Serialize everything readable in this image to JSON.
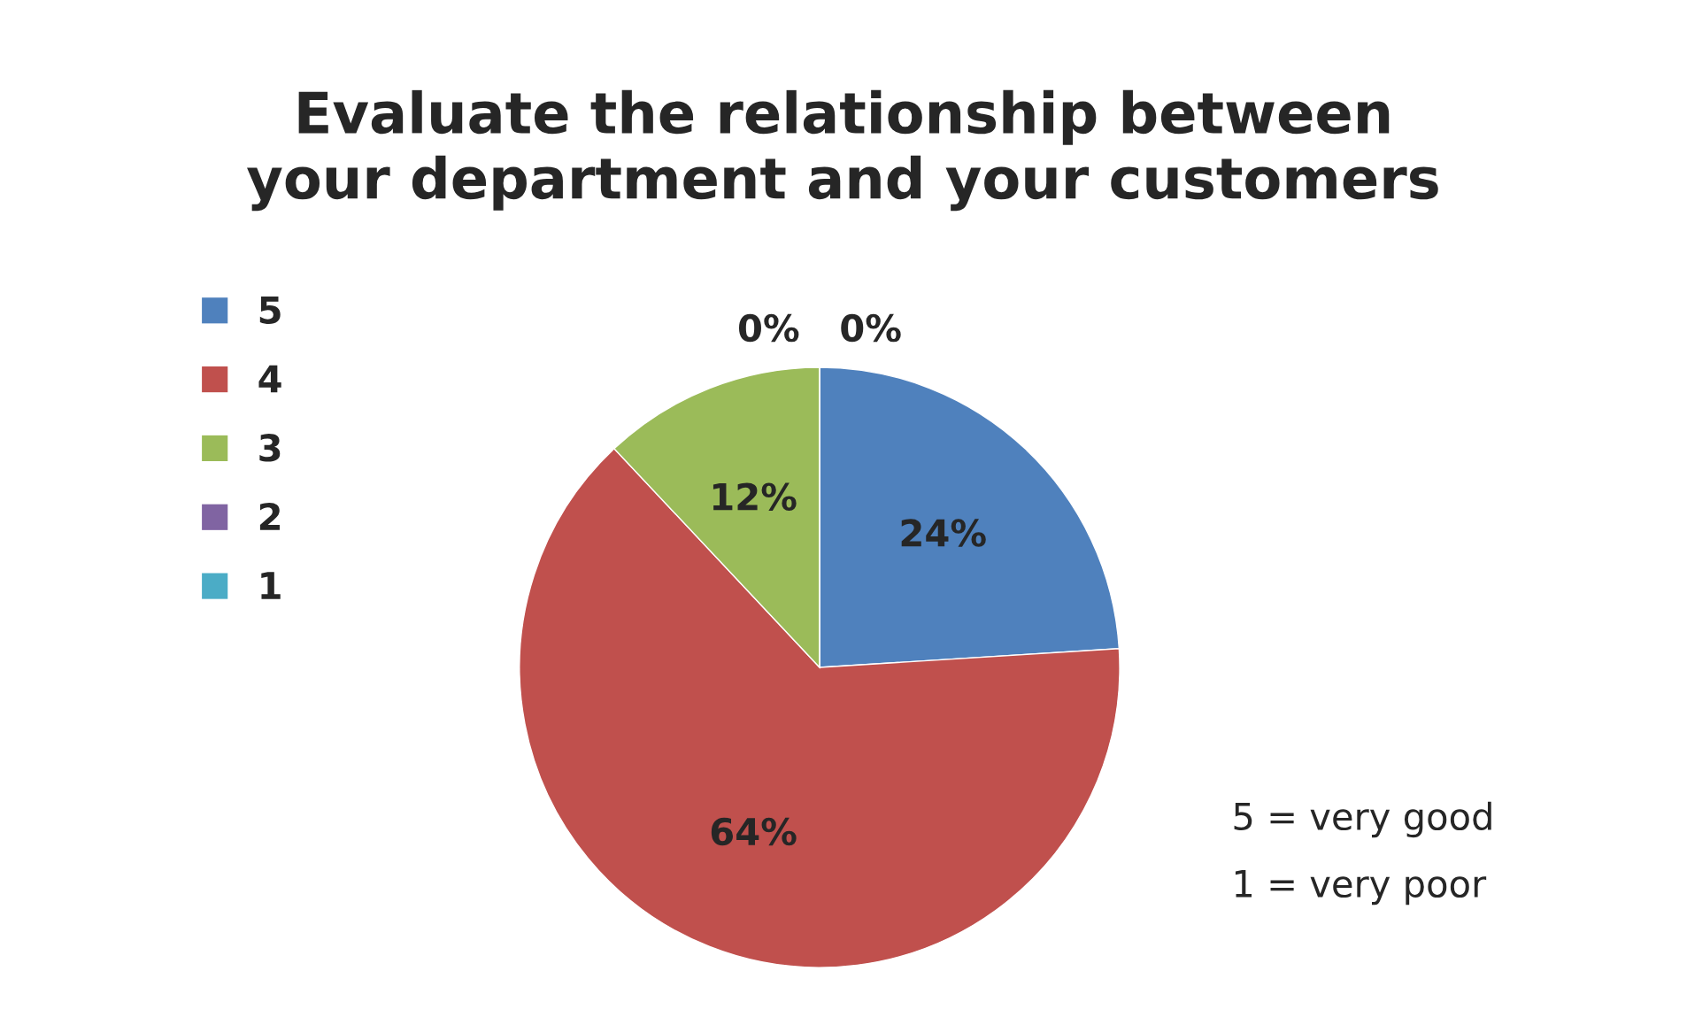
{
  "chart_data": {
    "type": "pie",
    "title": "Evaluate the relationship between\nyour department and your customers",
    "categories": [
      "5",
      "4",
      "3",
      "2",
      "1"
    ],
    "values": [
      24,
      64,
      12,
      0,
      0
    ],
    "colors": [
      "#4f81bd",
      "#c0504d",
      "#9bbb59",
      "#8064a2",
      "#4bacc6"
    ],
    "value_labels": [
      "24%",
      "64%",
      "12%",
      "0%",
      "0%"
    ],
    "legend": "left",
    "annotations": [
      "5 = very good",
      "1 = very poor"
    ]
  }
}
